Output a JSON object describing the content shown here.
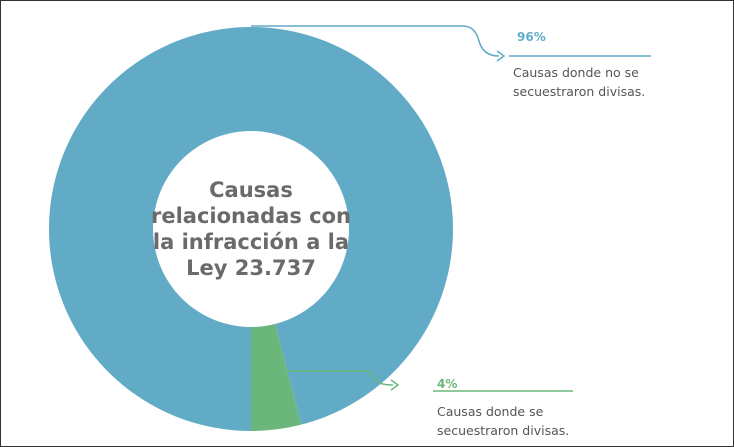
{
  "chart_data": {
    "type": "pie",
    "title": "Causas relacionadas con la infracción a la Ley 23.737",
    "categories": [
      "Causas donde no se secuestraron divisas.",
      "Causas donde se secuestraron divisas."
    ],
    "values": [
      96,
      4
    ],
    "value_labels": [
      "96%",
      "4%"
    ],
    "colors": [
      "#62abc7",
      "#6bb77b"
    ]
  }
}
